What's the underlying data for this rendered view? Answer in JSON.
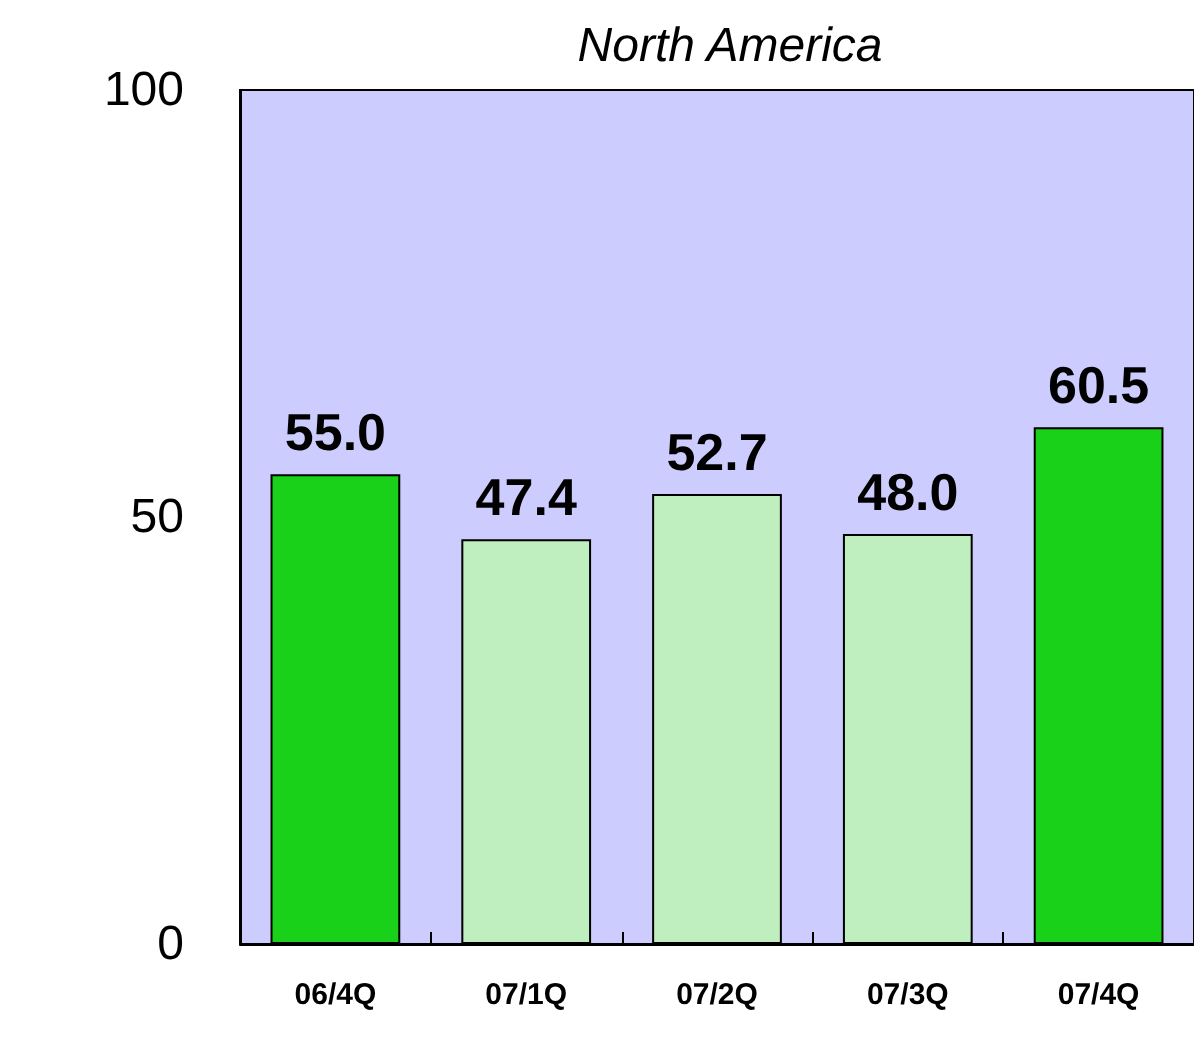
{
  "chart_data": {
    "type": "bar",
    "title": "North America",
    "categories": [
      "06/4Q",
      "07/1Q",
      "07/2Q",
      "07/3Q",
      "07/4Q"
    ],
    "values": [
      55.0,
      47.4,
      52.7,
      48.0,
      60.5
    ],
    "colors": [
      "#19d119",
      "#bfeebf",
      "#bfeebf",
      "#bfeebf",
      "#19d119"
    ],
    "value_labels": [
      "55.0",
      "47.4",
      "52.7",
      "48.0",
      "60.5"
    ],
    "ylim": [
      0,
      100
    ],
    "yticks": [
      0,
      50,
      100
    ]
  }
}
